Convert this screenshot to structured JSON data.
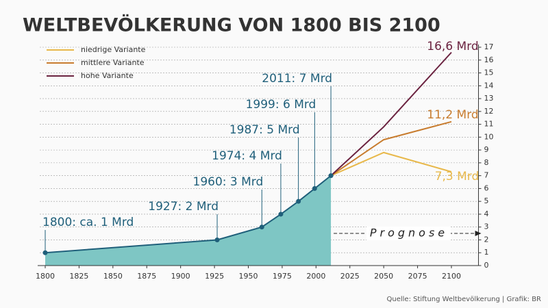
{
  "chart_data": {
    "type": "line",
    "title": "WELTBEVÖLKERUNG VON 1800 BIS 2100",
    "source": "Quelle: Stiftung Weltbevölkerung | Grafik: BR",
    "annotation": "Prognose",
    "xlim": [
      1800,
      2120
    ],
    "xticks": [
      1800,
      1825,
      1850,
      1875,
      1900,
      1925,
      1950,
      1975,
      2000,
      2025,
      2050,
      2075,
      2100
    ],
    "ylim": [
      0,
      17
    ],
    "yticks": [
      0,
      1,
      2,
      3,
      4,
      5,
      6,
      7,
      8,
      9,
      10,
      11,
      12,
      13,
      14,
      15,
      16,
      17
    ],
    "grid": true,
    "legend": "top-left",
    "series": [
      {
        "color": "#1f5f7a",
        "fill": "#7ec6c4",
        "x": [
          1800,
          1927,
          1960,
          1974,
          1987,
          1999,
          2011
        ],
        "values": [
          1,
          2,
          3,
          4,
          5,
          6,
          7
        ],
        "value_labels": [
          "1800: ca. 1 Mrd",
          "1927: 2 Mrd",
          "1960: 3 Mrd",
          "1974: 4 Mrd",
          "1987: 5 Mrd",
          "1999: 6 Mrd",
          "2011: 7 Mrd"
        ]
      },
      {
        "name": "niedrige Variante",
        "color": "#e8b84a",
        "x": [
          2011,
          2050,
          2100
        ],
        "values": [
          7,
          8.8,
          7.3
        ],
        "value_labels": [
          null,
          null,
          "7,3 Mrd"
        ]
      },
      {
        "name": "mittlere Variante",
        "color": "#c87c2e",
        "x": [
          2011,
          2050,
          2100
        ],
        "values": [
          7,
          9.8,
          11.2
        ],
        "value_labels": [
          null,
          null,
          "11,2 Mrd"
        ]
      },
      {
        "name": "hohe Variante",
        "color": "#6b2340",
        "x": [
          2011,
          2050,
          2100
        ],
        "values": [
          7,
          10.8,
          16.6
        ],
        "value_labels": [
          null,
          null,
          "16,6 Mrd"
        ]
      }
    ]
  }
}
